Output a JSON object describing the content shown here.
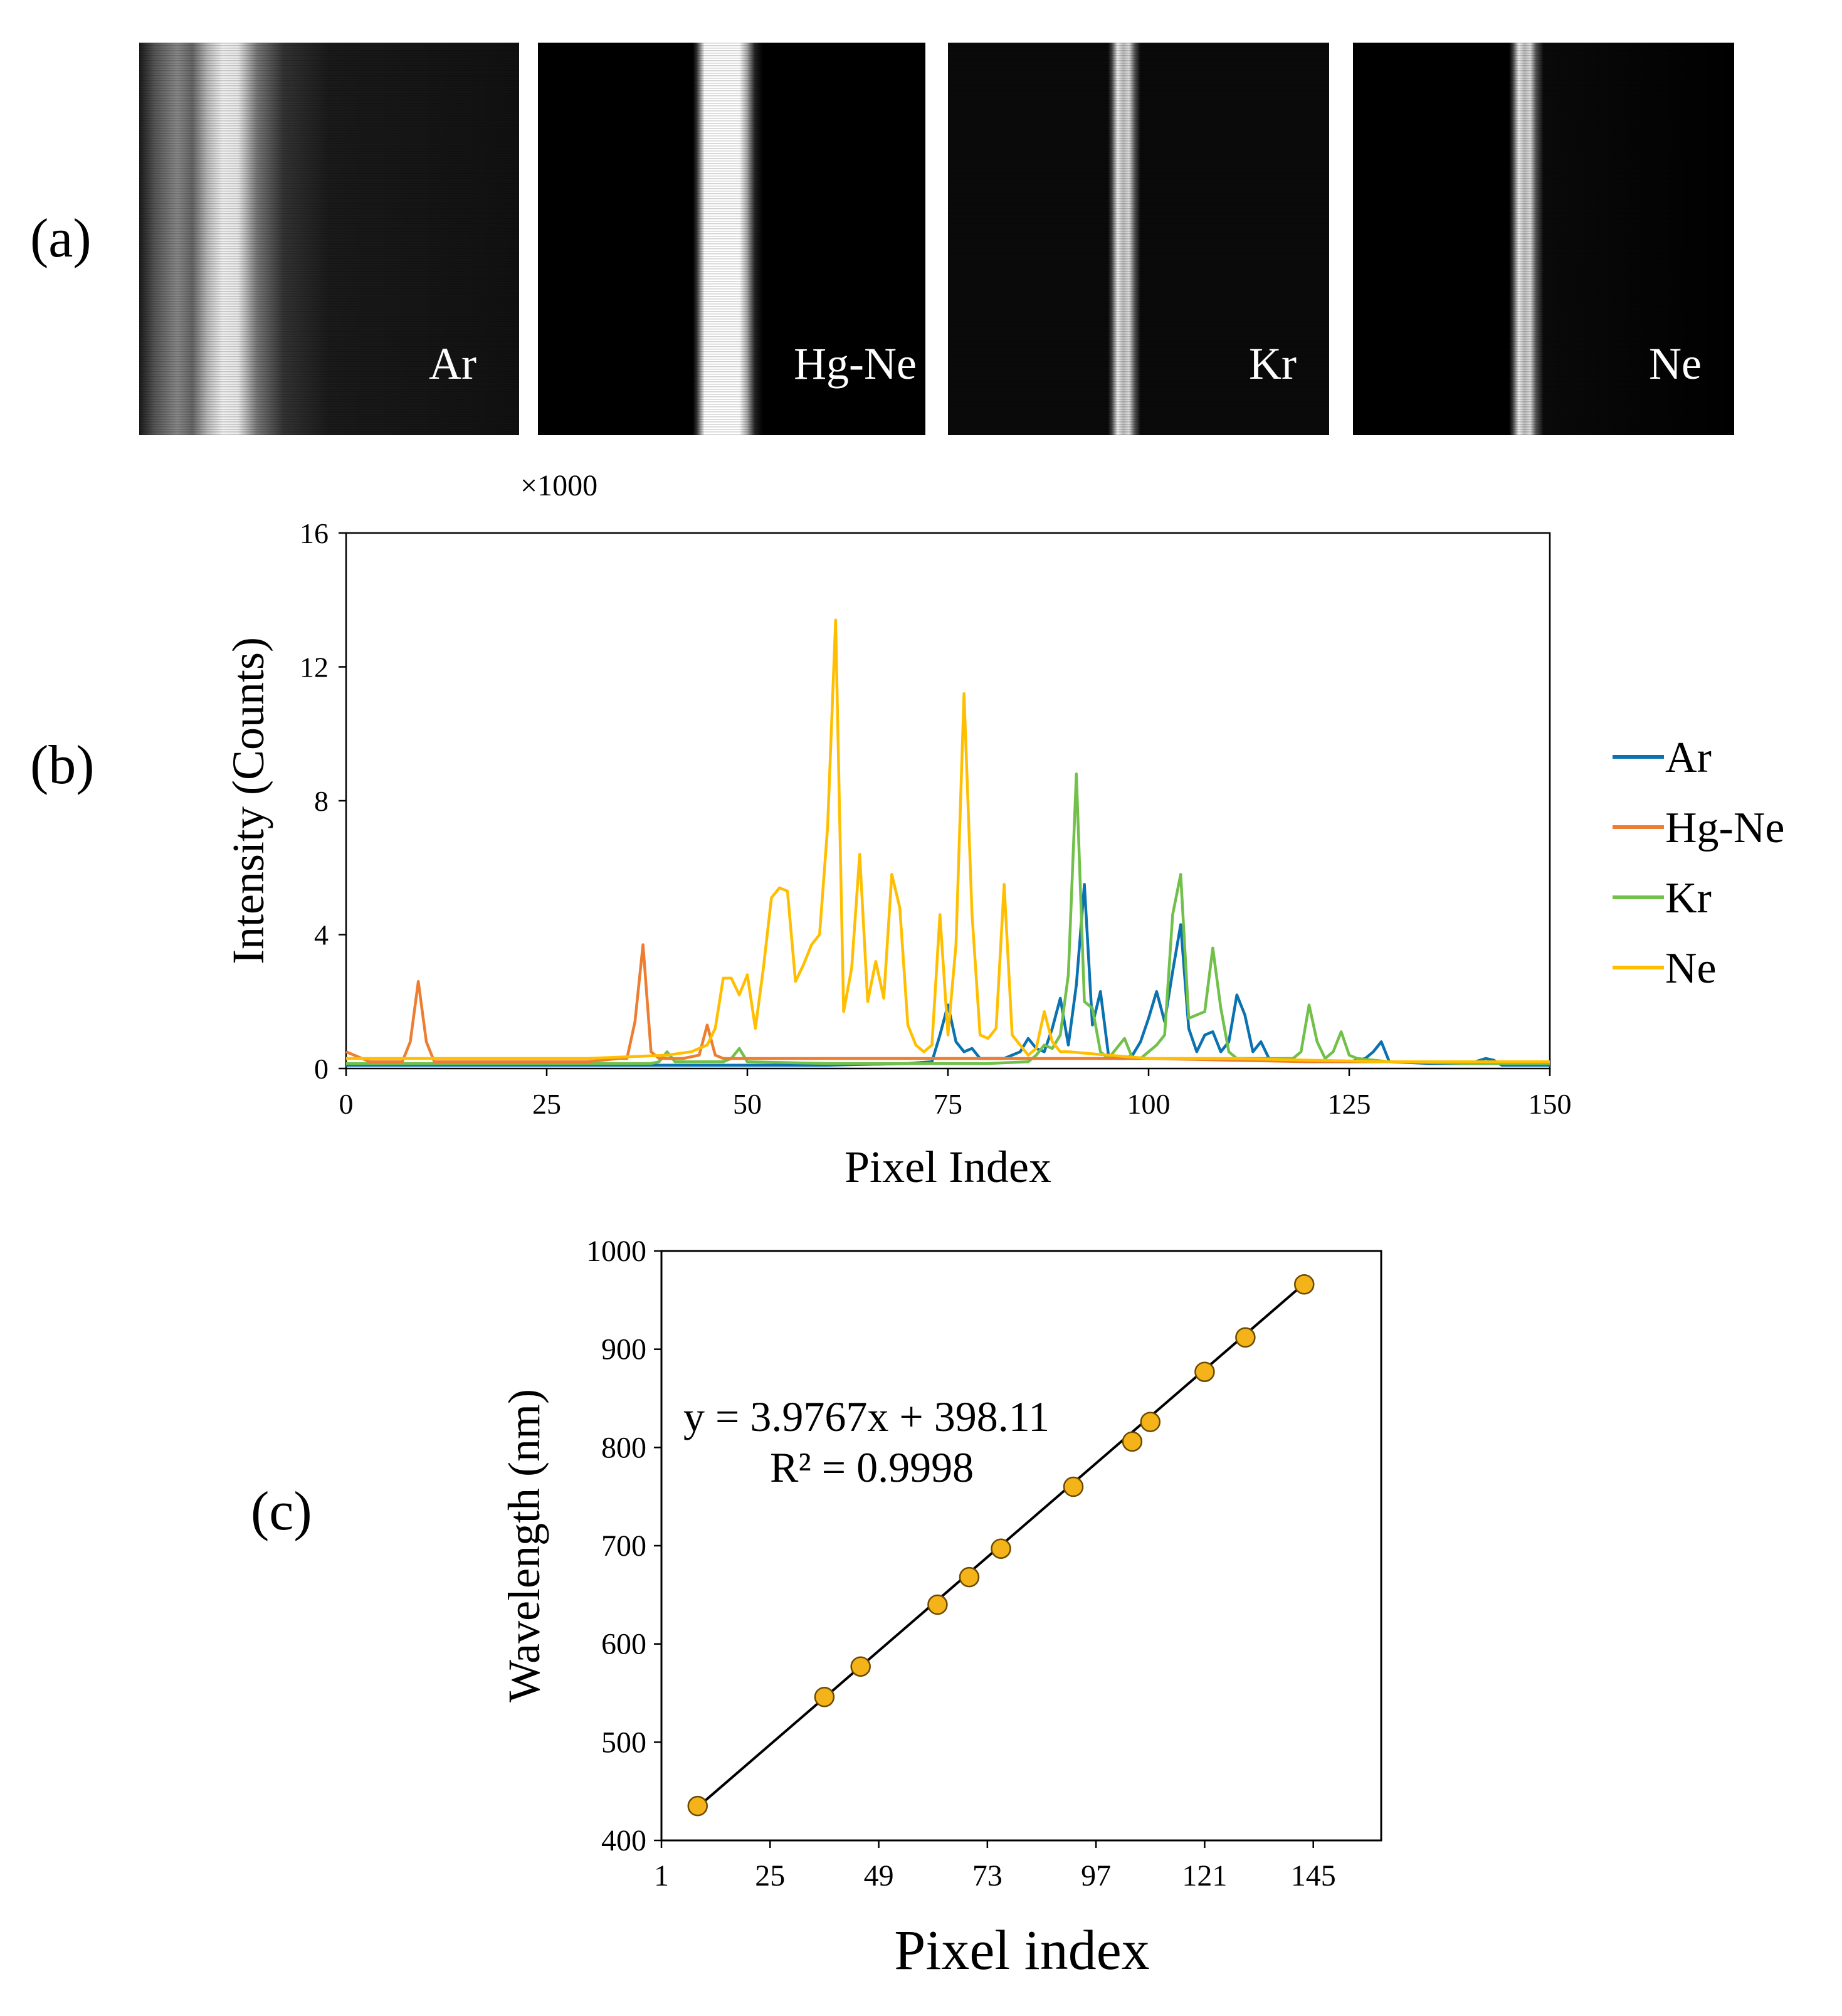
{
  "panel_labels": {
    "a": "(a)",
    "b": "(b)",
    "c": "(c)"
  },
  "spectral_images": [
    {
      "name": "Ar",
      "band": "wide-soft"
    },
    {
      "name": "Hg-Ne",
      "band": "single-bright"
    },
    {
      "name": "Kr",
      "band": "double-narrow"
    },
    {
      "name": "Ne",
      "band": "double-narrow"
    }
  ],
  "colors": {
    "Ar": "#0a72b0",
    "Hg-Ne": "#ed7d31",
    "Kr": "#70c04a",
    "Ne": "#ffbf00",
    "fit_marker": "#f5b31a",
    "fit_line": "#000000"
  },
  "chart_data": [
    {
      "type": "line",
      "xlabel": "Pixel Index",
      "ylabel": "Intensity (Counts)",
      "y_multiplier": "×1000",
      "xlim": [
        0,
        150
      ],
      "ylim": [
        0,
        16
      ],
      "xticks": [
        0,
        25,
        50,
        75,
        100,
        125,
        150
      ],
      "yticks": [
        0,
        4,
        8,
        12,
        16
      ],
      "legend_position": "right",
      "grid": false,
      "series": [
        {
          "name": "Ar",
          "x": [
            0,
            10,
            20,
            30,
            40,
            50,
            60,
            70,
            73,
            74,
            75,
            76,
            77,
            78,
            79,
            80,
            82,
            84,
            85,
            86,
            87,
            88,
            89,
            90,
            91,
            92,
            93,
            94,
            95,
            96,
            97,
            98,
            99,
            100,
            101,
            102,
            103,
            104,
            105,
            106,
            107,
            108,
            109,
            110,
            111,
            112,
            113,
            114,
            115,
            120,
            125,
            127,
            128,
            129,
            130,
            135,
            140,
            142,
            143,
            144,
            145,
            150
          ],
          "y": [
            0.1,
            0.1,
            0.1,
            0.1,
            0.1,
            0.1,
            0.1,
            0.15,
            0.2,
            1.0,
            1.9,
            0.8,
            0.5,
            0.6,
            0.3,
            0.3,
            0.3,
            0.5,
            0.9,
            0.6,
            0.5,
            1.2,
            2.1,
            0.7,
            2.5,
            5.5,
            1.3,
            2.3,
            0.4,
            0.3,
            0.3,
            0.4,
            0.8,
            1.5,
            2.3,
            1.4,
            2.9,
            4.3,
            1.2,
            0.5,
            1.0,
            1.1,
            0.5,
            0.8,
            2.2,
            1.6,
            0.5,
            0.8,
            0.3,
            0.2,
            0.2,
            0.3,
            0.5,
            0.8,
            0.2,
            0.15,
            0.15,
            0.3,
            0.25,
            0.1,
            0.1,
            0.1
          ]
        },
        {
          "name": "Hg-Ne",
          "x": [
            0,
            1,
            2,
            3,
            4,
            5,
            6,
            7,
            8,
            9,
            10,
            11,
            12,
            15,
            20,
            25,
            30,
            34,
            35,
            36,
            37,
            38,
            39,
            40,
            42,
            44,
            45,
            46,
            47,
            50,
            55,
            60,
            70,
            80,
            90,
            100,
            110,
            120,
            130,
            140,
            150
          ],
          "y": [
            0.5,
            0.4,
            0.3,
            0.2,
            0.2,
            0.2,
            0.2,
            0.2,
            0.8,
            2.6,
            0.8,
            0.2,
            0.2,
            0.2,
            0.2,
            0.2,
            0.2,
            0.3,
            0.3,
            1.4,
            3.7,
            0.5,
            0.3,
            0.3,
            0.3,
            0.4,
            1.3,
            0.4,
            0.3,
            0.3,
            0.3,
            0.3,
            0.3,
            0.3,
            0.3,
            0.3,
            0.25,
            0.2,
            0.2,
            0.2,
            0.2
          ]
        },
        {
          "name": "Kr",
          "x": [
            0,
            10,
            20,
            30,
            38,
            39,
            40,
            41,
            42,
            45,
            47,
            48,
            49,
            50,
            60,
            70,
            80,
            85,
            86,
            87,
            88,
            89,
            90,
            91,
            92,
            93,
            94,
            95,
            96,
            97,
            98,
            99,
            100,
            101,
            102,
            103,
            104,
            105,
            106,
            107,
            108,
            109,
            110,
            111,
            112,
            115,
            118,
            119,
            120,
            121,
            122,
            123,
            124,
            125,
            126,
            130,
            140,
            150
          ],
          "y": [
            0.15,
            0.15,
            0.15,
            0.15,
            0.15,
            0.2,
            0.5,
            0.2,
            0.2,
            0.2,
            0.2,
            0.3,
            0.6,
            0.2,
            0.15,
            0.15,
            0.15,
            0.2,
            0.4,
            0.7,
            0.6,
            1.0,
            2.8,
            8.8,
            2.0,
            1.8,
            0.5,
            0.3,
            0.6,
            0.9,
            0.3,
            0.3,
            0.5,
            0.7,
            1.0,
            4.6,
            5.8,
            1.5,
            1.6,
            1.7,
            3.6,
            1.8,
            0.5,
            0.3,
            0.3,
            0.3,
            0.3,
            0.5,
            1.9,
            0.8,
            0.3,
            0.5,
            1.1,
            0.4,
            0.3,
            0.2,
            0.15,
            0.15
          ]
        },
        {
          "name": "Ne",
          "x": [
            0,
            10,
            20,
            30,
            40,
            43,
            44,
            45,
            46,
            47,
            48,
            49,
            50,
            51,
            52,
            53,
            54,
            55,
            56,
            57,
            58,
            59,
            60,
            61,
            62,
            63,
            64,
            65,
            66,
            67,
            68,
            69,
            70,
            71,
            72,
            73,
            74,
            75,
            76,
            77,
            78,
            79,
            80,
            81,
            82,
            83,
            84,
            85,
            86,
            87,
            88,
            89,
            90,
            95,
            100,
            110,
            120,
            130,
            140,
            150
          ],
          "y": [
            0.3,
            0.3,
            0.3,
            0.3,
            0.4,
            0.5,
            0.6,
            0.7,
            1.2,
            2.7,
            2.7,
            2.2,
            2.8,
            1.2,
            3.0,
            5.1,
            5.4,
            5.3,
            2.6,
            3.1,
            3.7,
            4.0,
            7.2,
            13.4,
            1.7,
            3.0,
            6.4,
            2.0,
            3.2,
            2.1,
            5.8,
            4.8,
            1.3,
            0.7,
            0.5,
            0.7,
            4.6,
            1.0,
            3.7,
            11.2,
            4.6,
            1.0,
            0.9,
            1.2,
            5.5,
            1.0,
            0.7,
            0.4,
            0.6,
            1.7,
            0.8,
            0.5,
            0.5,
            0.4,
            0.3,
            0.3,
            0.25,
            0.2,
            0.2,
            0.2
          ]
        }
      ]
    },
    {
      "type": "scatter",
      "xlabel": "Pixel index",
      "ylabel": "Wavelength (nm)",
      "xlim": [
        1,
        160
      ],
      "ylim": [
        400,
        1000
      ],
      "xticks": [
        1,
        25,
        49,
        73,
        97,
        121,
        145
      ],
      "yticks": [
        400,
        500,
        600,
        700,
        800,
        900,
        1000
      ],
      "grid": false,
      "points": {
        "x": [
          9,
          37,
          45,
          62,
          69,
          76,
          92,
          105,
          109,
          121,
          130,
          143
        ],
        "y": [
          435,
          546,
          577,
          640,
          668,
          697,
          760,
          806,
          826,
          877,
          912,
          966
        ]
      },
      "trendline": {
        "slope": 3.9767,
        "intercept": 398.11,
        "x_range": [
          9,
          143
        ]
      },
      "equation": "y = 3.9767x + 398.11",
      "r_squared": "R² = 0.9998"
    }
  ]
}
